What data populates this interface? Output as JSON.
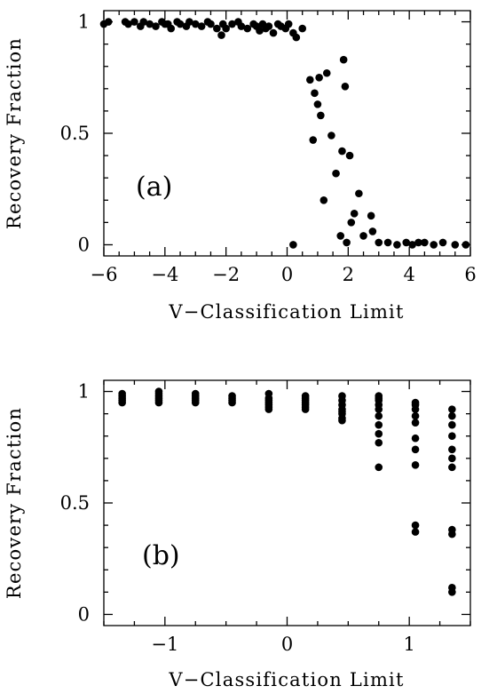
{
  "chart_data": [
    {
      "type": "scatter",
      "panel_label": "(a)",
      "xlabel": "V−Classification Limit",
      "ylabel": "Recovery Fraction",
      "xlim": [
        -6,
        6
      ],
      "ylim": [
        -0.05,
        1.05
      ],
      "xticks": [
        -6,
        -4,
        -2,
        0,
        2,
        4,
        6
      ],
      "xtick_labels": [
        "−6",
        "−4",
        "−2",
        "0",
        "2",
        "4",
        "6"
      ],
      "yticks": [
        0,
        0.5,
        1
      ],
      "ytick_labels": [
        "0",
        "0.5",
        "1"
      ],
      "x": [
        -6.0,
        -5.85,
        -5.3,
        -5.2,
        -5.0,
        -4.8,
        -4.7,
        -4.5,
        -4.3,
        -4.1,
        -4.0,
        -3.9,
        -3.8,
        -3.6,
        -3.5,
        -3.3,
        -3.2,
        -3.0,
        -2.8,
        -2.6,
        -2.5,
        -2.3,
        -2.15,
        -2.1,
        -2.0,
        -1.8,
        -1.6,
        -1.5,
        -1.3,
        -1.1,
        -1.0,
        -0.9,
        -0.8,
        -0.7,
        -0.6,
        -0.45,
        -0.3,
        -0.2,
        -0.05,
        0.05,
        0.2,
        0.3,
        0.5,
        0.75,
        0.85,
        0.9,
        1.0,
        1.05,
        1.1,
        1.2,
        1.3,
        1.45,
        1.6,
        1.75,
        1.8,
        1.85,
        1.9,
        1.95,
        2.05,
        2.1,
        2.2,
        2.35,
        2.5,
        2.75,
        2.8,
        3.0,
        3.3,
        3.6,
        3.9,
        4.1,
        4.3,
        4.5,
        4.8,
        5.1,
        5.5,
        5.85,
        0.2
      ],
      "y": [
        0.99,
        1.0,
        1.0,
        0.99,
        1.0,
        0.98,
        1.0,
        0.99,
        0.98,
        1.0,
        0.99,
        0.99,
        0.97,
        1.0,
        0.99,
        0.98,
        1.0,
        0.99,
        0.98,
        1.0,
        0.99,
        0.97,
        0.94,
        0.99,
        0.97,
        0.99,
        1.0,
        0.98,
        0.97,
        0.99,
        0.98,
        0.96,
        0.99,
        0.97,
        0.98,
        0.95,
        0.99,
        0.98,
        0.97,
        0.99,
        0.95,
        0.93,
        0.97,
        0.74,
        0.47,
        0.68,
        0.63,
        0.75,
        0.58,
        0.2,
        0.77,
        0.49,
        0.32,
        0.04,
        0.42,
        0.83,
        0.71,
        0.01,
        0.4,
        0.1,
        0.14,
        0.23,
        0.04,
        0.13,
        0.06,
        0.01,
        0.01,
        0.0,
        0.01,
        0.0,
        0.01,
        0.01,
        0.0,
        0.01,
        0.0,
        0.0,
        0.0
      ]
    },
    {
      "type": "scatter",
      "panel_label": "(b)",
      "xlabel": "V−Classification Limit",
      "ylabel": "Recovery Fraction",
      "xlim": [
        -1.5,
        1.5
      ],
      "ylim": [
        -0.05,
        1.05
      ],
      "xticks": [
        -1,
        0,
        1
      ],
      "xtick_labels": [
        "−1",
        "0",
        "1"
      ],
      "yticks": [
        0,
        0.5,
        1
      ],
      "ytick_labels": [
        "0",
        "0.5",
        "1"
      ],
      "x": [
        -1.35,
        -1.35,
        -1.35,
        -1.35,
        -1.35,
        -1.05,
        -1.05,
        -1.05,
        -1.05,
        -1.05,
        -1.05,
        -0.75,
        -0.75,
        -0.75,
        -0.75,
        -0.75,
        -0.45,
        -0.45,
        -0.45,
        -0.45,
        -0.15,
        -0.15,
        -0.15,
        -0.15,
        -0.15,
        -0.15,
        -0.15,
        0.15,
        0.15,
        0.15,
        0.15,
        0.15,
        0.15,
        0.15,
        0.45,
        0.45,
        0.45,
        0.45,
        0.45,
        0.45,
        0.45,
        0.45,
        0.75,
        0.75,
        0.75,
        0.75,
        0.75,
        0.75,
        0.75,
        0.75,
        0.75,
        0.75,
        1.05,
        1.05,
        1.05,
        1.05,
        1.05,
        1.05,
        1.05,
        1.05,
        1.05,
        1.05,
        1.35,
        1.35,
        1.35,
        1.35,
        1.35,
        1.35,
        1.35,
        1.35,
        1.35,
        1.35,
        1.35
      ],
      "y": [
        0.99,
        0.98,
        0.97,
        0.96,
        0.95,
        1.0,
        0.99,
        0.98,
        0.97,
        0.96,
        0.95,
        0.99,
        0.98,
        0.97,
        0.96,
        0.95,
        0.98,
        0.97,
        0.96,
        0.95,
        0.99,
        0.97,
        0.96,
        0.95,
        0.94,
        0.93,
        0.92,
        0.98,
        0.97,
        0.96,
        0.95,
        0.94,
        0.93,
        0.92,
        0.98,
        0.96,
        0.94,
        0.92,
        0.91,
        0.9,
        0.88,
        0.87,
        0.98,
        0.97,
        0.96,
        0.94,
        0.92,
        0.89,
        0.85,
        0.81,
        0.77,
        0.66,
        0.95,
        0.94,
        0.92,
        0.89,
        0.86,
        0.79,
        0.74,
        0.67,
        0.4,
        0.37,
        0.92,
        0.89,
        0.85,
        0.8,
        0.74,
        0.7,
        0.66,
        0.38,
        0.36,
        0.12,
        0.1
      ]
    }
  ]
}
